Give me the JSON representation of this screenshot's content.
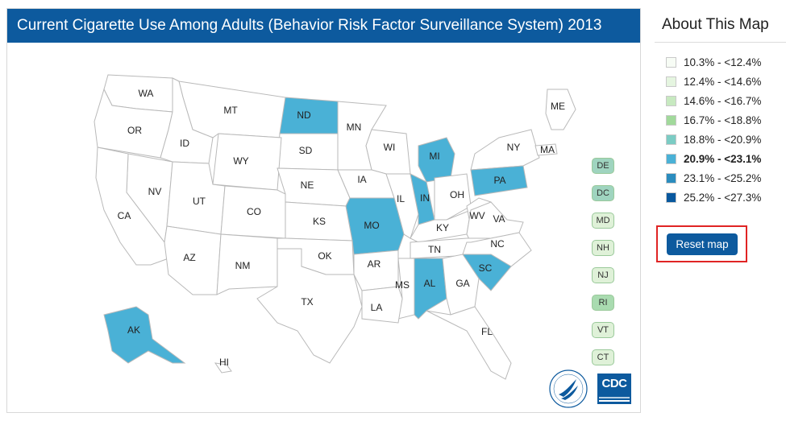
{
  "map": {
    "title": "Current Cigarette Use Among Adults (Behavior Risk Factor Surveillance System) 2013",
    "highlight_color": "#4ab1d6",
    "highlighted_states": [
      "ND",
      "MI",
      "IN",
      "MO",
      "PA",
      "SC",
      "AL",
      "AK"
    ],
    "states": [
      "WA",
      "MT",
      "ND",
      "MN",
      "ME",
      "OR",
      "ID",
      "SD",
      "WI",
      "NY",
      "MA",
      "WY",
      "MI",
      "PA",
      "NV",
      "NE",
      "IA",
      "IL",
      "IN",
      "OH",
      "CA",
      "UT",
      "CO",
      "MO",
      "KS",
      "KY",
      "WV",
      "VA",
      "AZ",
      "NM",
      "OK",
      "AR",
      "TN",
      "NC",
      "SC",
      "TX",
      "MS",
      "AL",
      "GA",
      "LA",
      "FL",
      "AK",
      "HI"
    ],
    "small_states": [
      {
        "label": "DE",
        "color": "#9fd4bf"
      },
      {
        "label": "DC",
        "color": "#9fd4bf"
      },
      {
        "label": "MD",
        "color": "#dff1d8"
      },
      {
        "label": "NH",
        "color": "#dff1d8"
      },
      {
        "label": "NJ",
        "color": "#dff1d8"
      },
      {
        "label": "RI",
        "color": "#a9dbb0"
      },
      {
        "label": "VT",
        "color": "#dff1d8"
      },
      {
        "label": "CT",
        "color": "#dff1d8"
      }
    ],
    "logos": {
      "cdc": "CDC"
    }
  },
  "about": {
    "title": "About This Map",
    "legend": [
      {
        "label": "10.3% - <12.4%",
        "color": "#f7fcf5",
        "active": false
      },
      {
        "label": "12.4% - <14.6%",
        "color": "#e5f5e0",
        "active": false
      },
      {
        "label": "14.6% - <16.7%",
        "color": "#c7e9c0",
        "active": false
      },
      {
        "label": "16.7% - <18.8%",
        "color": "#a1d99b",
        "active": false
      },
      {
        "label": "18.8% - <20.9%",
        "color": "#7bccc4",
        "active": false
      },
      {
        "label": "20.9% - <23.1%",
        "color": "#4ab1d6",
        "active": true
      },
      {
        "label": "23.1% - <25.2%",
        "color": "#2b8cbe",
        "active": false
      },
      {
        "label": "25.2% - <27.3%",
        "color": "#08589e",
        "active": false
      }
    ],
    "reset_label": "Reset map"
  }
}
